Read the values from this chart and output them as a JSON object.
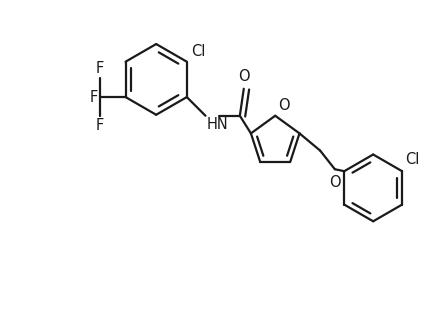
{
  "background_color": "#ffffff",
  "line_color": "#1a1a1a",
  "line_width": 1.6,
  "font_size": 10.5,
  "figsize": [
    4.43,
    3.13
  ],
  "dpi": 100,
  "xlim": [
    0,
    8.86
  ],
  "ylim": [
    0,
    6.26
  ]
}
